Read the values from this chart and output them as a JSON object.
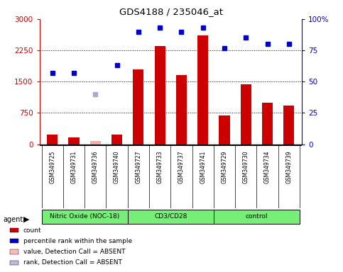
{
  "title": "GDS4188 / 235046_at",
  "samples": [
    "GSM349725",
    "GSM349731",
    "GSM349736",
    "GSM349740",
    "GSM349727",
    "GSM349733",
    "GSM349737",
    "GSM349741",
    "GSM349729",
    "GSM349730",
    "GSM349734",
    "GSM349739"
  ],
  "counts": [
    230,
    170,
    70,
    230,
    1800,
    2350,
    1650,
    2600,
    680,
    1430,
    1000,
    920
  ],
  "percentile_ranks": [
    57,
    57,
    null,
    63,
    90,
    93,
    90,
    93,
    77,
    85,
    80,
    80
  ],
  "absent_count": [
    null,
    null,
    70,
    null,
    null,
    null,
    null,
    null,
    null,
    null,
    null,
    null
  ],
  "absent_rank": [
    null,
    null,
    40,
    null,
    null,
    null,
    null,
    null,
    null,
    null,
    null,
    null
  ],
  "groups": [
    {
      "label": "Nitric Oxide (NOC-18)",
      "start": 0,
      "end": 3
    },
    {
      "label": "CD3/CD28",
      "start": 4,
      "end": 7
    },
    {
      "label": "control",
      "start": 8,
      "end": 11
    }
  ],
  "ylim_left": [
    0,
    3000
  ],
  "ylim_right": [
    0,
    100
  ],
  "yticks_left": [
    0,
    750,
    1500,
    2250,
    3000
  ],
  "yticks_right": [
    0,
    25,
    50,
    75,
    100
  ],
  "bar_color": "#cc0000",
  "absent_bar_color": "#ffaaaa",
  "dot_color": "#0000cc",
  "absent_dot_color": "#aaaacc",
  "bg_color": "#c8c8c8",
  "plot_bg": "#ffffff",
  "left_axis_color": "#cc0000",
  "right_axis_color": "#0000cc",
  "group_fill": "#77ee77",
  "group_border": "#000000",
  "bar_width": 0.5,
  "legend_items": [
    {
      "label": "count",
      "color": "#cc0000"
    },
    {
      "label": "percentile rank within the sample",
      "color": "#0000cc"
    },
    {
      "label": "value, Detection Call = ABSENT",
      "color": "#ffbbbb"
    },
    {
      "label": "rank, Detection Call = ABSENT",
      "color": "#bbbbdd"
    }
  ]
}
